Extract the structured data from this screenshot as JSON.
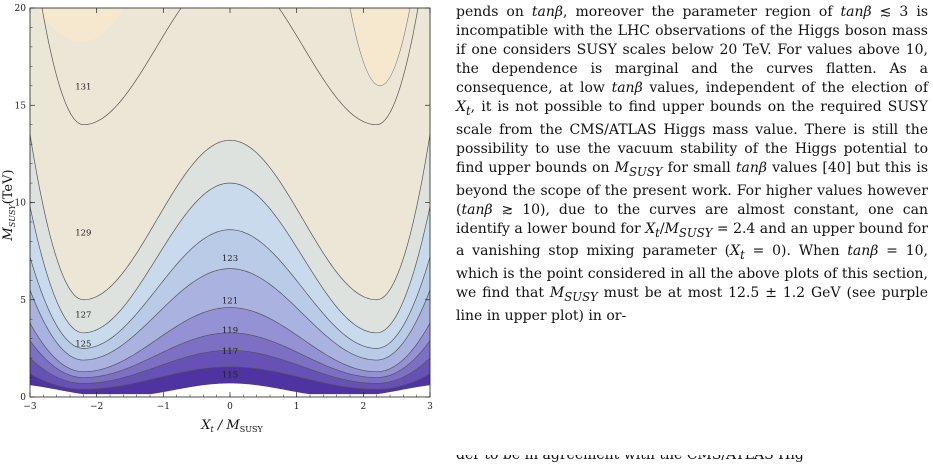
{
  "figure": {
    "y_axis_title": "M",
    "y_axis_sub": "SUSY",
    "y_axis_unit": "(TeV)",
    "x_axis_title": "X",
    "x_axis_title_sub": "t",
    "x_axis_title_rest": " / M",
    "x_axis_title_sub2": "SUSY",
    "x_ticks": [
      "−3",
      "−2",
      "−1",
      "0",
      "1",
      "2",
      "3"
    ],
    "y_ticks": [
      "0",
      "5",
      "10",
      "15",
      "20"
    ],
    "contour_labels": [
      {
        "text": "131",
        "x": -2.2,
        "y": 15.8
      },
      {
        "text": "129",
        "x": -2.2,
        "y": 8.3
      },
      {
        "text": "123",
        "x": 0.0,
        "y": 7.0
      },
      {
        "text": "127",
        "x": -2.2,
        "y": 4.1
      },
      {
        "text": "121",
        "x": 0.0,
        "y": 4.8
      },
      {
        "text": "125",
        "x": -2.2,
        "y": 2.6
      },
      {
        "text": "119",
        "x": 0.0,
        "y": 3.3
      },
      {
        "text": "117",
        "x": 0.0,
        "y": 2.2
      },
      {
        "text": "115",
        "x": 0.0,
        "y": 1.0
      }
    ],
    "chart_data": {
      "type": "contour",
      "xlabel": "Xt / MSUSY",
      "ylabel": "MSUSY(TeV)",
      "xlim": [
        -3,
        3
      ],
      "ylim": [
        0,
        20
      ],
      "levels": [
        115,
        117,
        119,
        121,
        123,
        125,
        127,
        129,
        131
      ],
      "colors": {
        "low": "#3b1f87",
        "mid": "#a9c4e6",
        "high": "#e9e2cf",
        "peak": "#f6e7cf"
      }
    }
  },
  "text": {
    "paragraph_html": "pends on <i>tanβ</i>, moreover the parameter region of <i>tanβ</i> ≲ 3 is incompatible with the LHC observations of the Higgs boson mass if one considers SUSY scales below 20 TeV. For values above 10, the dependence is marginal and the curves flatten. As a consequence, at low <i>tanβ</i> values, independent of the election of <i>X<sub>t</sub></i>, it is not possible to find upper bounds on the required SUSY scale from the CMS/ATLAS Higgs mass value. There is still the possibility to use the vacuum stability of the Higgs potential to find upper bounds on <i>M<sub>SUSY</sub></i> for small <i>tanβ</i> values [40] but this is beyond the scope of the present work. For higher values however (<i>tanβ</i> ≳ 10), due to the curves are almost constant, one can identify a lower bound for <i>X<sub>t</sub></i>/<i>M<sub>SUSY</sub></i> = 2.4 and an upper bound for a vanishing stop mixing parameter (<i>X<sub>t</sub></i> = 0). When <i>tanβ</i> = 10, which is the point considered in all the above plots of this section, we find that <i>M<sub>SUSY</sub></i> must be at most 12.5 ± 1.2 GeV (see purple line in upper plot) in or-",
    "clipped_line": "der to be in agreement with the CMS/ATLAS Hig"
  }
}
